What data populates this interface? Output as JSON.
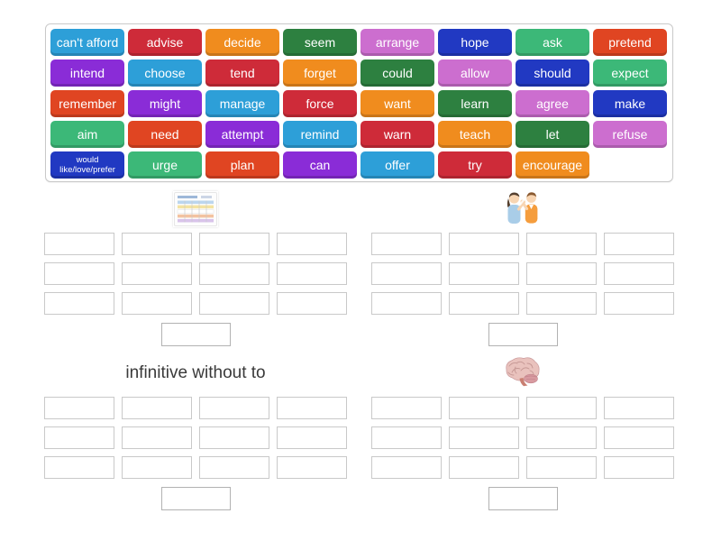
{
  "activity": {
    "kind": "group-sort-word-bank",
    "background_color": "#ffffff"
  },
  "palette": {
    "light_blue": "#2d9fd8",
    "crimson": "#ce2b39",
    "orange": "#f08c1e",
    "dark_green": "#2d8040",
    "orchid": "#cc6ecf",
    "dark_blue": "#2139c2",
    "emerald": "#3cb878",
    "red_orange": "#e04522",
    "purple": "#8a2cd7"
  },
  "tiles": [
    {
      "label": "can't afford",
      "color": "light_blue"
    },
    {
      "label": "advise",
      "color": "crimson"
    },
    {
      "label": "decide",
      "color": "orange"
    },
    {
      "label": "seem",
      "color": "dark_green"
    },
    {
      "label": "arrange",
      "color": "orchid"
    },
    {
      "label": "hope",
      "color": "dark_blue"
    },
    {
      "label": "ask",
      "color": "emerald"
    },
    {
      "label": "pretend",
      "color": "red_orange"
    },
    {
      "label": "intend",
      "color": "purple"
    },
    {
      "label": "choose",
      "color": "light_blue"
    },
    {
      "label": "tend",
      "color": "crimson"
    },
    {
      "label": "forget",
      "color": "orange"
    },
    {
      "label": "could",
      "color": "dark_green"
    },
    {
      "label": "allow",
      "color": "orchid"
    },
    {
      "label": "should",
      "color": "dark_blue"
    },
    {
      "label": "expect",
      "color": "emerald"
    },
    {
      "label": "remember",
      "color": "red_orange"
    },
    {
      "label": "might",
      "color": "purple"
    },
    {
      "label": "manage",
      "color": "light_blue"
    },
    {
      "label": "force",
      "color": "crimson"
    },
    {
      "label": "want",
      "color": "orange"
    },
    {
      "label": "learn",
      "color": "dark_green"
    },
    {
      "label": "agree",
      "color": "orchid"
    },
    {
      "label": "make",
      "color": "dark_blue"
    },
    {
      "label": "aim",
      "color": "emerald"
    },
    {
      "label": "need",
      "color": "red_orange"
    },
    {
      "label": "attempt",
      "color": "purple"
    },
    {
      "label": "remind",
      "color": "light_blue"
    },
    {
      "label": "warn",
      "color": "crimson"
    },
    {
      "label": "teach",
      "color": "orange"
    },
    {
      "label": "let",
      "color": "dark_green"
    },
    {
      "label": "refuse",
      "color": "orchid"
    },
    {
      "label": "would like/love/prefer",
      "color": "dark_blue",
      "lines": [
        "would",
        "like/love/prefer"
      ]
    },
    {
      "label": "urge",
      "color": "emerald"
    },
    {
      "label": "plan",
      "color": "red_orange"
    },
    {
      "label": "can",
      "color": "purple"
    },
    {
      "label": "offer",
      "color": "light_blue"
    },
    {
      "label": "try",
      "color": "crimson"
    },
    {
      "label": "encourage",
      "color": "orange"
    }
  ],
  "groups": [
    {
      "id": "group-1",
      "header": {
        "kind": "image",
        "icon": "timetable-table-icon"
      },
      "slot_rows": 3,
      "slot_cols": 4,
      "answer_slots": 1
    },
    {
      "id": "group-2",
      "header": {
        "kind": "image",
        "icon": "two-people-talking-icon"
      },
      "slot_rows": 3,
      "slot_cols": 4,
      "answer_slots": 1
    },
    {
      "id": "group-3",
      "header": {
        "kind": "text",
        "label": "infinitive without to"
      },
      "slot_rows": 3,
      "slot_cols": 4,
      "answer_slots": 1
    },
    {
      "id": "group-4",
      "header": {
        "kind": "image",
        "icon": "brain-icon"
      },
      "slot_rows": 3,
      "slot_cols": 4,
      "answer_slots": 1
    }
  ]
}
